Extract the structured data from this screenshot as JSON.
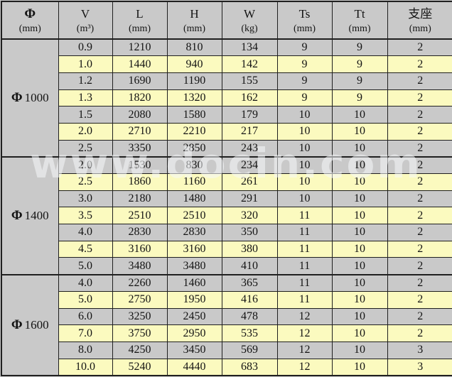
{
  "table": {
    "watermark_text": "www.docin.com",
    "colors": {
      "row_gray": "#c9c9c9",
      "row_yellow": "#fbfabf",
      "border": "#1f1f1f"
    },
    "columns": [
      {
        "key": "phi",
        "symbol": "Φ",
        "unit": "(mm)"
      },
      {
        "key": "v",
        "symbol": "V",
        "unit": "(m³)"
      },
      {
        "key": "l",
        "symbol": "L",
        "unit": "(mm)"
      },
      {
        "key": "h",
        "symbol": "H",
        "unit": "(mm)"
      },
      {
        "key": "w",
        "symbol": "W",
        "unit": "(kg)"
      },
      {
        "key": "ts",
        "symbol": "Ts",
        "unit": "(mm)"
      },
      {
        "key": "tt",
        "symbol": "Tt",
        "unit": "(mm)"
      },
      {
        "key": "support",
        "symbol": "支座",
        "unit": "(mm)"
      }
    ],
    "groups": [
      {
        "diameter_label": "Φ",
        "diameter_value": "1000",
        "rows": [
          {
            "v": "0.9",
            "l": "1210",
            "h": "810",
            "w": "134",
            "ts": "9",
            "tt": "9",
            "support": "2"
          },
          {
            "v": "1.0",
            "l": "1440",
            "h": "940",
            "w": "142",
            "ts": "9",
            "tt": "9",
            "support": "2"
          },
          {
            "v": "1.2",
            "l": "1690",
            "h": "1190",
            "w": "155",
            "ts": "9",
            "tt": "9",
            "support": "2"
          },
          {
            "v": "1.3",
            "l": "1820",
            "h": "1320",
            "w": "162",
            "ts": "9",
            "tt": "9",
            "support": "2"
          },
          {
            "v": "1.5",
            "l": "2080",
            "h": "1580",
            "w": "179",
            "ts": "10",
            "tt": "10",
            "support": "2"
          },
          {
            "v": "2.0",
            "l": "2710",
            "h": "2210",
            "w": "217",
            "ts": "10",
            "tt": "10",
            "support": "2"
          },
          {
            "v": "2.5",
            "l": "3350",
            "h": "2850",
            "w": "243",
            "ts": "10",
            "tt": "10",
            "support": "2"
          }
        ]
      },
      {
        "diameter_label": "Φ",
        "diameter_value": "1400",
        "rows": [
          {
            "v": "2.0",
            "l": "1530",
            "h": "830",
            "w": "234",
            "ts": "10",
            "tt": "10",
            "support": "2"
          },
          {
            "v": "2.5",
            "l": "1860",
            "h": "1160",
            "w": "261",
            "ts": "10",
            "tt": "10",
            "support": "2"
          },
          {
            "v": "3.0",
            "l": "2180",
            "h": "1480",
            "w": "291",
            "ts": "10",
            "tt": "10",
            "support": "2"
          },
          {
            "v": "3.5",
            "l": "2510",
            "h": "2510",
            "w": "320",
            "ts": "11",
            "tt": "10",
            "support": "2"
          },
          {
            "v": "4.0",
            "l": "2830",
            "h": "2830",
            "w": "350",
            "ts": "11",
            "tt": "10",
            "support": "2"
          },
          {
            "v": "4.5",
            "l": "3160",
            "h": "3160",
            "w": "380",
            "ts": "11",
            "tt": "10",
            "support": "2"
          },
          {
            "v": "5.0",
            "l": "3480",
            "h": "3480",
            "w": "410",
            "ts": "11",
            "tt": "10",
            "support": "2"
          }
        ]
      },
      {
        "diameter_label": "Φ",
        "diameter_value": "1600",
        "rows": [
          {
            "v": "4.0",
            "l": "2260",
            "h": "1460",
            "w": "365",
            "ts": "11",
            "tt": "10",
            "support": "2"
          },
          {
            "v": "5.0",
            "l": "2750",
            "h": "1950",
            "w": "416",
            "ts": "11",
            "tt": "10",
            "support": "2"
          },
          {
            "v": "6.0",
            "l": "3250",
            "h": "2450",
            "w": "478",
            "ts": "12",
            "tt": "10",
            "support": "2"
          },
          {
            "v": "7.0",
            "l": "3750",
            "h": "2950",
            "w": "535",
            "ts": "12",
            "tt": "10",
            "support": "2"
          },
          {
            "v": "8.0",
            "l": "4250",
            "h": "3450",
            "w": "569",
            "ts": "12",
            "tt": "10",
            "support": "3"
          },
          {
            "v": "10.0",
            "l": "5240",
            "h": "4440",
            "w": "683",
            "ts": "12",
            "tt": "10",
            "support": "3"
          }
        ]
      }
    ]
  }
}
